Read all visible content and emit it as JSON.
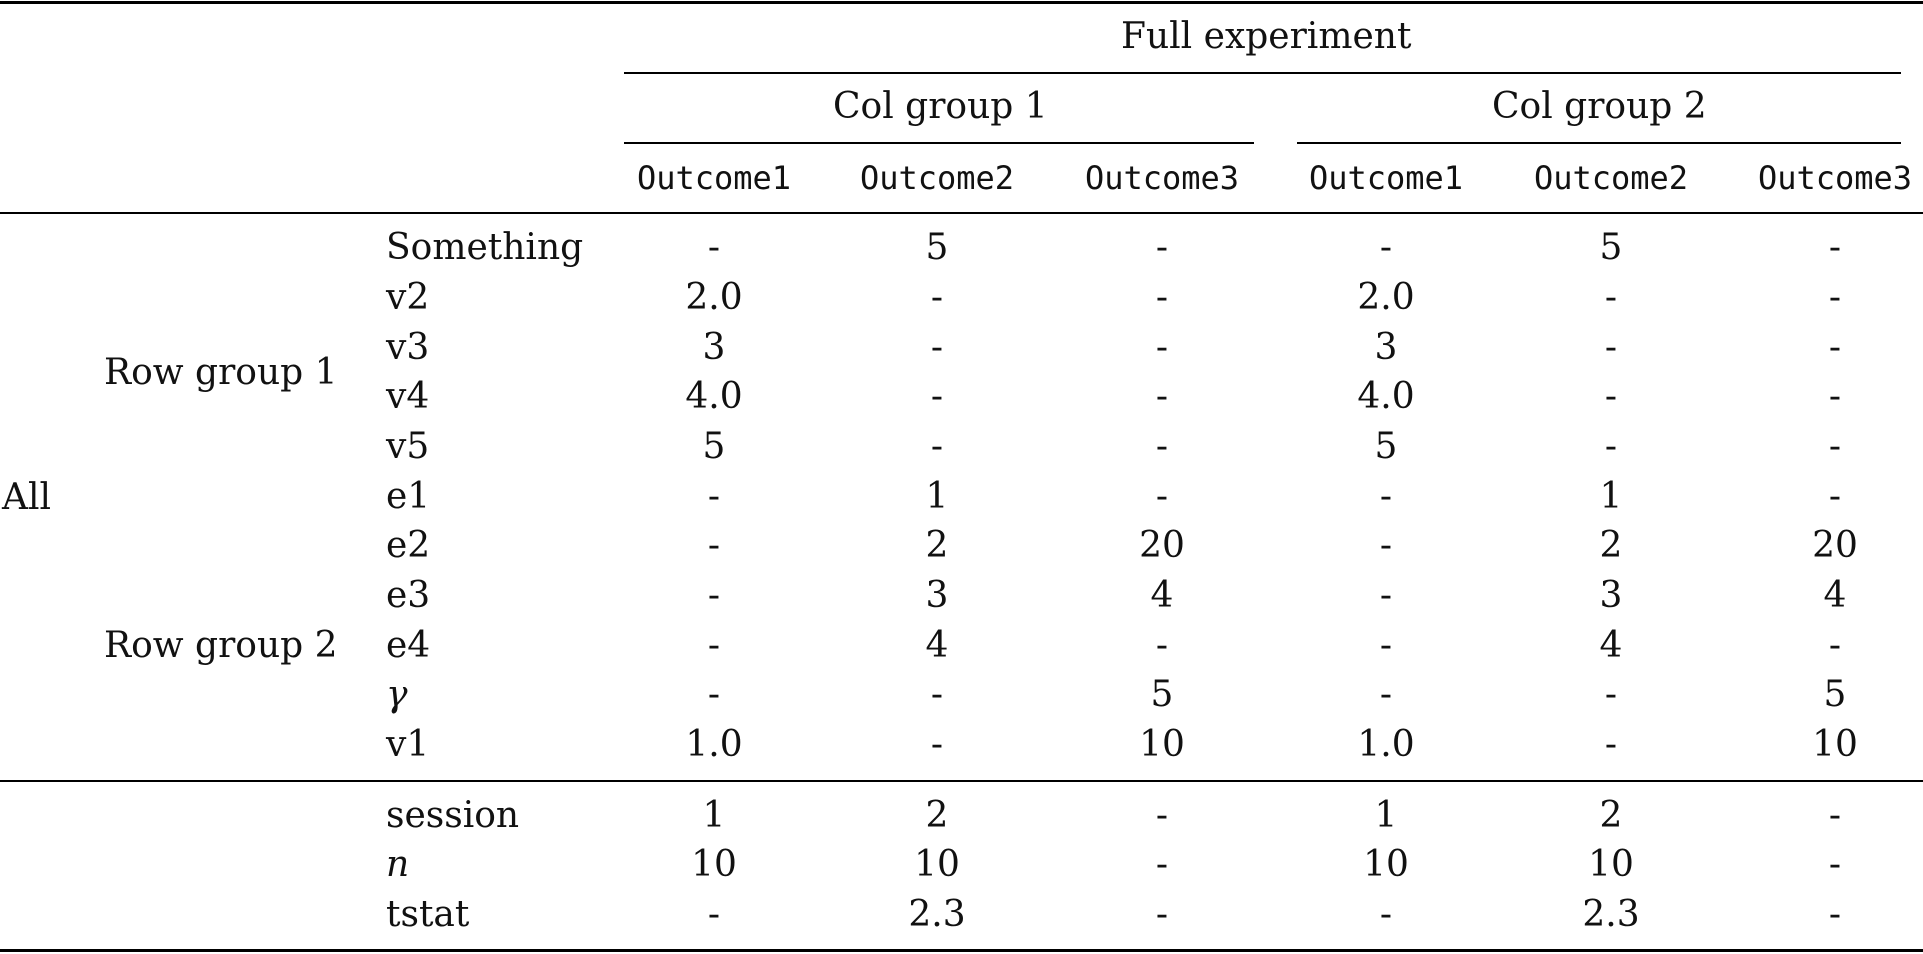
{
  "header": {
    "spanner": "Full experiment",
    "col_groups": [
      "Col group 1",
      "Col group 2"
    ],
    "col_labels": [
      "Outcome1",
      "Outcome2",
      "Outcome3",
      "Outcome1",
      "Outcome2",
      "Outcome3"
    ]
  },
  "stub": {
    "outer_label": "All",
    "row_groups": [
      "Row group 1",
      "Row group 2"
    ]
  },
  "body_rows": [
    {
      "label": "Something",
      "italic": false,
      "values": [
        "-",
        "5",
        "-",
        "-",
        "5",
        "-"
      ]
    },
    {
      "label": "v2",
      "italic": false,
      "values": [
        "2.0",
        "-",
        "-",
        "2.0",
        "-",
        "-"
      ]
    },
    {
      "label": "v3",
      "italic": false,
      "values": [
        "3",
        "-",
        "-",
        "3",
        "-",
        "-"
      ]
    },
    {
      "label": "v4",
      "italic": false,
      "values": [
        "4.0",
        "-",
        "-",
        "4.0",
        "-",
        "-"
      ]
    },
    {
      "label": "v5",
      "italic": false,
      "values": [
        "5",
        "-",
        "-",
        "5",
        "-",
        "-"
      ]
    },
    {
      "label": "e1",
      "italic": false,
      "values": [
        "-",
        "1",
        "-",
        "-",
        "1",
        "-"
      ]
    },
    {
      "label": "e2",
      "italic": false,
      "values": [
        "-",
        "2",
        "20",
        "-",
        "2",
        "20"
      ]
    },
    {
      "label": "e3",
      "italic": false,
      "values": [
        "-",
        "3",
        "4",
        "-",
        "3",
        "4"
      ]
    },
    {
      "label": "e4",
      "italic": false,
      "values": [
        "-",
        "4",
        "-",
        "-",
        "4",
        "-"
      ]
    },
    {
      "label": "γ",
      "italic": true,
      "values": [
        "-",
        "-",
        "5",
        "-",
        "-",
        "5"
      ]
    },
    {
      "label": "v1",
      "italic": false,
      "values": [
        "1.0",
        "-",
        "10",
        "1.0",
        "-",
        "10"
      ]
    }
  ],
  "footer_rows": [
    {
      "label": "session",
      "italic": false,
      "values": [
        "1",
        "2",
        "-",
        "1",
        "2",
        "-"
      ]
    },
    {
      "label": "n",
      "italic": true,
      "values": [
        "10",
        "10",
        "-",
        "10",
        "10",
        "-"
      ]
    },
    {
      "label": "tstat",
      "italic": false,
      "values": [
        "-",
        "2.3",
        "-",
        "-",
        "2.3",
        "-"
      ]
    }
  ]
}
